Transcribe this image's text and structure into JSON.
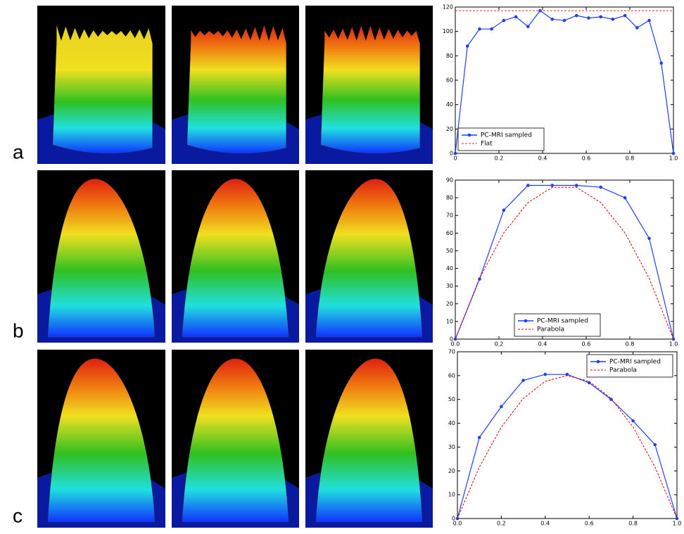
{
  "panel_labels": [
    "a",
    "b",
    "c"
  ],
  "chart_data": [
    {
      "type": "line",
      "xlim": [
        0,
        1
      ],
      "ylim": [
        0,
        120
      ],
      "xticks": [
        0,
        0.2,
        0.4,
        0.6,
        0.8,
        {
          "value": 1,
          "label": "1.0"
        }
      ],
      "yticks": [
        0,
        20,
        40,
        60,
        80,
        100,
        120
      ],
      "legend": "lower left",
      "series": [
        {
          "name": "PC-MRI sampled",
          "color": "#1f3fff",
          "marker": "circle",
          "dash": false,
          "x": [
            0,
            0.0556,
            0.1111,
            0.1667,
            0.2222,
            0.2778,
            0.3333,
            0.3889,
            0.4444,
            0.5,
            0.5556,
            0.6111,
            0.6667,
            0.7222,
            0.7778,
            0.8333,
            0.8889,
            0.9444,
            1
          ],
          "values": [
            0,
            88,
            102,
            102,
            109,
            112,
            104,
            117,
            110,
            109,
            113,
            111,
            112,
            110,
            113,
            103,
            109,
            74,
            0
          ]
        },
        {
          "name": "Flat",
          "color": "#e03030",
          "marker": "none",
          "dash": true,
          "x": [
            0,
            1
          ],
          "values": [
            117,
            117
          ]
        }
      ]
    },
    {
      "type": "line",
      "xlim": [
        0,
        1
      ],
      "ylim": [
        0,
        90
      ],
      "xticks": [
        {
          "value": 0,
          "label": "0.0"
        },
        0.2,
        0.4,
        0.6,
        0.8,
        {
          "value": 1,
          "label": "1.0"
        }
      ],
      "yticks": [
        0,
        10,
        20,
        30,
        40,
        50,
        60,
        70,
        80,
        90
      ],
      "legend": "lower center",
      "series": [
        {
          "name": "PC-MRI sampled",
          "color": "#1f3fff",
          "marker": "circle",
          "dash": false,
          "x": [
            0,
            0.1111,
            0.2222,
            0.3333,
            0.4444,
            0.5556,
            0.6667,
            0.7778,
            0.8889,
            1
          ],
          "values": [
            0,
            34,
            73,
            87,
            87,
            87,
            86,
            80,
            57,
            0
          ]
        },
        {
          "name": "Parabola",
          "color": "#e00000",
          "marker": "none",
          "dash": true,
          "x": [
            0,
            0.1111,
            0.2222,
            0.3333,
            0.4444,
            0.5556,
            0.6667,
            0.7778,
            0.8889,
            1
          ],
          "values": [
            0,
            34.4,
            60.1,
            77.3,
            85.9,
            85.9,
            77.3,
            60.1,
            34.4,
            0
          ]
        }
      ]
    },
    {
      "type": "line",
      "xlim": [
        0,
        1
      ],
      "ylim": [
        0,
        70
      ],
      "xticks": [
        {
          "value": 0,
          "label": "0.0"
        },
        0.2,
        0.4,
        0.6,
        0.8,
        {
          "value": 1,
          "label": "1.0"
        }
      ],
      "yticks": [
        0,
        10,
        20,
        30,
        40,
        50,
        60,
        70
      ],
      "legend": "upper right",
      "series": [
        {
          "name": "PC-MRI sampled",
          "color": "#1f3fff",
          "marker": "circle",
          "dash": false,
          "x": [
            0,
            0.1,
            0.2,
            0.3,
            0.4,
            0.5,
            0.6,
            0.7,
            0.8,
            0.9,
            1
          ],
          "values": [
            0,
            34,
            47,
            58,
            60.5,
            60.5,
            57,
            50,
            41,
            31,
            0
          ]
        },
        {
          "name": "Parabola",
          "color": "#e00000",
          "marker": "none",
          "dash": true,
          "x": [
            0,
            0.1,
            0.2,
            0.3,
            0.4,
            0.5,
            0.6,
            0.7,
            0.8,
            0.9,
            1
          ],
          "values": [
            0,
            21.6,
            38.4,
            50.4,
            57.6,
            60,
            57.6,
            50.4,
            38.4,
            21.6,
            0
          ]
        }
      ]
    }
  ]
}
